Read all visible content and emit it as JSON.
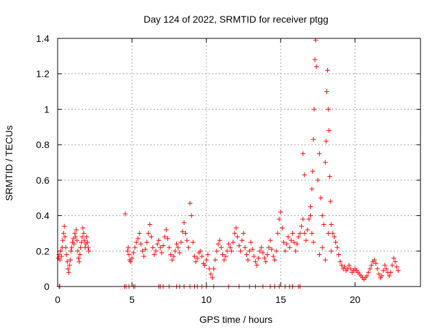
{
  "chart_data": {
    "type": "scatter",
    "title": "Day 124 of 2022, SRMTID for receiver ptgg",
    "xlabel": "GPS time / hours",
    "ylabel": "SRMTID / TECUs",
    "xlim": [
      0,
      24.4
    ],
    "ylim": [
      0,
      1.4
    ],
    "xticks": [
      0,
      5,
      10,
      15,
      20
    ],
    "xtick_labels": [
      "0",
      "5",
      "10",
      "15",
      "20"
    ],
    "yticks": [
      0,
      0.2,
      0.4,
      0.6,
      0.8,
      1.0,
      1.2,
      1.4
    ],
    "ytick_labels": [
      "0",
      "0.2",
      "0.4",
      "0.6",
      "0.8",
      "1",
      "1.2",
      "1.4"
    ],
    "grid": true,
    "marker": "plus",
    "marker_color": "#ff0000",
    "series": [
      {
        "name": "SRMTID",
        "points": [
          [
            0.05,
            0.16
          ],
          [
            0.1,
            0.18
          ],
          [
            0.15,
            0.15
          ],
          [
            0.2,
            0.2
          ],
          [
            0.25,
            0.17
          ],
          [
            0.3,
            0.22
          ],
          [
            0.35,
            0.26
          ],
          [
            0.4,
            0.3
          ],
          [
            0.45,
            0.34
          ],
          [
            0.5,
            0.28
          ],
          [
            0.55,
            0.22
          ],
          [
            0.6,
            0.18
          ],
          [
            0.65,
            0.14
          ],
          [
            0.7,
            0.1
          ],
          [
            0.75,
            0.08
          ],
          [
            0.8,
            0.12
          ],
          [
            0.85,
            0.15
          ],
          [
            0.9,
            0.2
          ],
          [
            0.95,
            0.22
          ],
          [
            1.0,
            0.25
          ],
          [
            1.05,
            0.27
          ],
          [
            1.1,
            0.24
          ],
          [
            1.15,
            0.3
          ],
          [
            1.2,
            0.28
          ],
          [
            1.25,
            0.32
          ],
          [
            1.3,
            0.26
          ],
          [
            1.35,
            0.2
          ],
          [
            1.4,
            0.16
          ],
          [
            1.45,
            0.14
          ],
          [
            1.5,
            0.18
          ],
          [
            1.55,
            0.22
          ],
          [
            1.6,
            0.25
          ],
          [
            1.65,
            0.28
          ],
          [
            1.7,
            0.33
          ],
          [
            1.75,
            0.3
          ],
          [
            1.8,
            0.26
          ],
          [
            1.85,
            0.22
          ],
          [
            1.9,
            0.24
          ],
          [
            1.95,
            0.28
          ],
          [
            2.0,
            0.25
          ],
          [
            2.05,
            0.22
          ],
          [
            2.1,
            0.2
          ],
          [
            0.1,
            0.0
          ],
          [
            0.15,
            0.0
          ],
          [
            4.5,
            0.0
          ],
          [
            4.6,
            0.0
          ],
          [
            4.55,
            0.41
          ],
          [
            4.8,
            0.0
          ],
          [
            5.1,
            0.0
          ],
          [
            5.2,
            0.0
          ],
          [
            4.7,
            0.2
          ],
          [
            4.75,
            0.22
          ],
          [
            4.8,
            0.18
          ],
          [
            4.85,
            0.15
          ],
          [
            4.9,
            0.14
          ],
          [
            5.0,
            0.16
          ],
          [
            5.1,
            0.19
          ],
          [
            5.2,
            0.22
          ],
          [
            5.3,
            0.25
          ],
          [
            5.4,
            0.27
          ],
          [
            5.5,
            0.3
          ],
          [
            5.6,
            0.24
          ],
          [
            5.7,
            0.2
          ],
          [
            5.8,
            0.17
          ],
          [
            5.9,
            0.21
          ],
          [
            6.0,
            0.25
          ],
          [
            6.1,
            0.3
          ],
          [
            6.2,
            0.35
          ],
          [
            6.3,
            0.28
          ],
          [
            6.4,
            0.22
          ],
          [
            6.5,
            0.18
          ],
          [
            6.6,
            0.2
          ],
          [
            6.7,
            0.24
          ],
          [
            6.8,
            0.26
          ],
          [
            6.9,
            0.22
          ],
          [
            7.0,
            0.19
          ],
          [
            6.8,
            0.0
          ],
          [
            6.9,
            0.0
          ],
          [
            7.1,
            0.0
          ],
          [
            7.5,
            0.0
          ],
          [
            8.0,
            0.0
          ],
          [
            8.2,
            0.0
          ],
          [
            8.5,
            0.0
          ],
          [
            7.1,
            0.23
          ],
          [
            7.2,
            0.28
          ],
          [
            7.3,
            0.32
          ],
          [
            7.4,
            0.27
          ],
          [
            7.5,
            0.22
          ],
          [
            7.6,
            0.18
          ],
          [
            7.7,
            0.15
          ],
          [
            7.8,
            0.17
          ],
          [
            7.9,
            0.2
          ],
          [
            8.0,
            0.24
          ],
          [
            8.1,
            0.22
          ],
          [
            8.2,
            0.19
          ],
          [
            8.3,
            0.25
          ],
          [
            8.4,
            0.31
          ],
          [
            8.5,
            0.36
          ],
          [
            8.6,
            0.3
          ],
          [
            8.7,
            0.26
          ],
          [
            8.8,
            0.22
          ],
          [
            8.9,
            0.47
          ],
          [
            9.0,
            0.4
          ],
          [
            9.1,
            0.25
          ],
          [
            9.2,
            0.17
          ],
          [
            9.3,
            0.14
          ],
          [
            9.4,
            0.16
          ],
          [
            9.5,
            0.19
          ],
          [
            8.9,
            0.0
          ],
          [
            9.2,
            0.0
          ],
          [
            9.4,
            0.0
          ],
          [
            9.7,
            0.0
          ],
          [
            10.0,
            0.0
          ],
          [
            10.5,
            0.0
          ],
          [
            9.6,
            0.2
          ],
          [
            9.7,
            0.17
          ],
          [
            9.8,
            0.13
          ],
          [
            9.9,
            0.12
          ],
          [
            10.0,
            0.15
          ],
          [
            10.1,
            0.18
          ],
          [
            10.2,
            0.1
          ],
          [
            10.3,
            0.07
          ],
          [
            10.4,
            0.05
          ],
          [
            10.5,
            0.1
          ],
          [
            10.6,
            0.15
          ],
          [
            10.7,
            0.2
          ],
          [
            10.8,
            0.24
          ],
          [
            10.9,
            0.26
          ],
          [
            11.0,
            0.22
          ],
          [
            11.1,
            0.18
          ],
          [
            11.2,
            0.15
          ],
          [
            11.3,
            0.17
          ],
          [
            11.4,
            0.2
          ],
          [
            11.5,
            0.24
          ],
          [
            11.6,
            0.22
          ],
          [
            11.7,
            0.2
          ],
          [
            11.8,
            0.25
          ],
          [
            11.9,
            0.3
          ],
          [
            12.0,
            0.33
          ],
          [
            12.1,
            0.28
          ],
          [
            12.2,
            0.23
          ],
          [
            12.3,
            0.2
          ],
          [
            12.4,
            0.26
          ],
          [
            12.5,
            0.3
          ],
          [
            11.5,
            0.0
          ],
          [
            12.2,
            0.0
          ],
          [
            12.9,
            0.0
          ],
          [
            13.3,
            0.0
          ],
          [
            13.8,
            0.0
          ],
          [
            12.6,
            0.22
          ],
          [
            12.7,
            0.18
          ],
          [
            12.8,
            0.15
          ],
          [
            12.9,
            0.2
          ],
          [
            13.0,
            0.25
          ],
          [
            13.1,
            0.21
          ],
          [
            13.2,
            0.17
          ],
          [
            13.3,
            0.14
          ],
          [
            13.4,
            0.12
          ],
          [
            13.5,
            0.16
          ],
          [
            13.6,
            0.2
          ],
          [
            13.7,
            0.22
          ],
          [
            13.8,
            0.19
          ],
          [
            13.9,
            0.16
          ],
          [
            14.0,
            0.14
          ],
          [
            14.1,
            0.18
          ],
          [
            14.2,
            0.22
          ],
          [
            14.3,
            0.26
          ],
          [
            14.4,
            0.21
          ],
          [
            14.5,
            0.17
          ],
          [
            14.6,
            0.15
          ],
          [
            14.7,
            0.2
          ],
          [
            14.8,
            0.3
          ],
          [
            14.9,
            0.38
          ],
          [
            15.0,
            0.42
          ],
          [
            15.1,
            0.33
          ],
          [
            15.2,
            0.25
          ],
          [
            15.3,
            0.2
          ],
          [
            15.4,
            0.24
          ],
          [
            15.5,
            0.28
          ],
          [
            14.3,
            0.0
          ],
          [
            14.6,
            0.0
          ],
          [
            14.9,
            0.0
          ],
          [
            15.3,
            0.0
          ],
          [
            15.6,
            0.0
          ],
          [
            15.8,
            0.0
          ],
          [
            16.2,
            0.0
          ],
          [
            16.3,
            0.0
          ],
          [
            15.6,
            0.22
          ],
          [
            15.7,
            0.26
          ],
          [
            15.8,
            0.3
          ],
          [
            15.9,
            0.25
          ],
          [
            16.0,
            0.2
          ],
          [
            16.1,
            0.24
          ],
          [
            16.2,
            0.28
          ],
          [
            16.3,
            0.3
          ],
          [
            16.4,
            0.34
          ],
          [
            16.5,
            0.38
          ],
          [
            16.6,
            0.3
          ],
          [
            16.7,
            0.26
          ],
          [
            16.8,
            0.32
          ],
          [
            16.9,
            0.38
          ],
          [
            17.0,
            0.45
          ],
          [
            17.1,
            0.55
          ],
          [
            17.15,
            0.65
          ],
          [
            17.2,
            0.83
          ],
          [
            17.25,
            1.0
          ],
          [
            17.3,
            1.28
          ],
          [
            17.35,
            1.39
          ],
          [
            17.4,
            1.24
          ],
          [
            17.5,
            0.6
          ],
          [
            17.6,
            0.75
          ],
          [
            17.7,
            0.5
          ],
          [
            17.8,
            0.4
          ],
          [
            17.9,
            0.35
          ],
          [
            18.0,
            0.7
          ],
          [
            18.05,
            0.82
          ],
          [
            18.1,
            1.1
          ],
          [
            18.15,
            1.22
          ],
          [
            18.2,
            1.0
          ],
          [
            18.25,
            0.88
          ],
          [
            18.3,
            0.62
          ],
          [
            18.35,
            0.48
          ],
          [
            18.4,
            0.35
          ],
          [
            18.5,
            0.3
          ],
          [
            18.6,
            0.28
          ],
          [
            18.7,
            0.25
          ],
          [
            18.8,
            0.22
          ],
          [
            18.9,
            0.18
          ],
          [
            19.0,
            0.14
          ],
          [
            19.1,
            0.12
          ],
          [
            16.5,
            0.75
          ],
          [
            16.6,
            0.63
          ],
          [
            17.0,
            0.4
          ],
          [
            17.1,
            0.3
          ],
          [
            17.2,
            0.25
          ],
          [
            17.6,
            0.18
          ],
          [
            17.8,
            0.22
          ],
          [
            18.0,
            0.15
          ],
          [
            18.2,
            0.3
          ],
          [
            18.4,
            0.2
          ],
          [
            19.2,
            0.1
          ],
          [
            19.3,
            0.11
          ],
          [
            19.4,
            0.09
          ],
          [
            19.5,
            0.1
          ],
          [
            19.6,
            0.12
          ],
          [
            19.7,
            0.1
          ],
          [
            19.8,
            0.08
          ],
          [
            19.9,
            0.09
          ],
          [
            20.0,
            0.1
          ],
          [
            20.1,
            0.09
          ],
          [
            20.2,
            0.08
          ],
          [
            20.3,
            0.07
          ],
          [
            20.4,
            0.06
          ],
          [
            20.5,
            0.05
          ],
          [
            20.6,
            0.04
          ],
          [
            20.7,
            0.05
          ],
          [
            20.8,
            0.06
          ],
          [
            20.9,
            0.08
          ],
          [
            21.0,
            0.1
          ],
          [
            21.1,
            0.12
          ],
          [
            21.2,
            0.14
          ],
          [
            21.3,
            0.15
          ],
          [
            21.4,
            0.13
          ],
          [
            21.5,
            0.1
          ],
          [
            21.6,
            0.07
          ],
          [
            21.7,
            0.05
          ],
          [
            21.8,
            0.06
          ],
          [
            21.9,
            0.09
          ],
          [
            22.0,
            0.12
          ],
          [
            22.1,
            0.1
          ],
          [
            22.2,
            0.08
          ],
          [
            22.3,
            0.06
          ],
          [
            22.4,
            0.08
          ],
          [
            22.5,
            0.12
          ],
          [
            22.6,
            0.16
          ],
          [
            22.7,
            0.14
          ],
          [
            22.8,
            0.11
          ],
          [
            22.9,
            0.09
          ]
        ]
      }
    ]
  }
}
